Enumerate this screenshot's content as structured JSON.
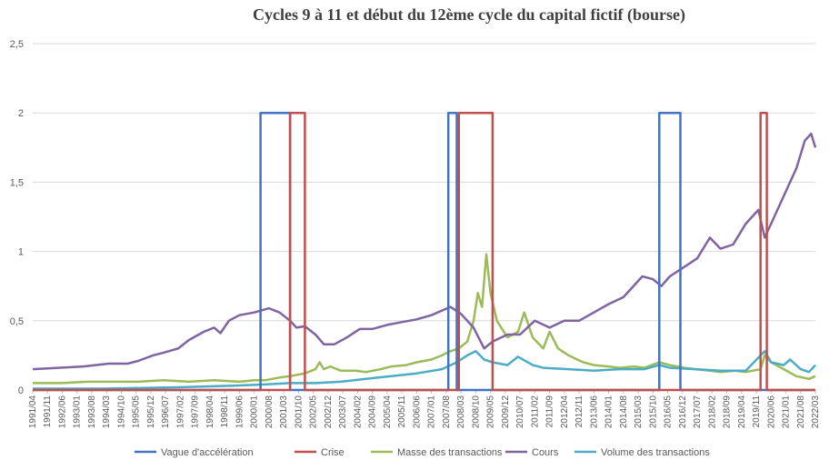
{
  "chart_data": {
    "type": "line",
    "title": "Cycles 9 à 11 et début du 12ème cycle du capital fictif  (bourse)",
    "xlabel": "",
    "ylabel": "",
    "ylim": [
      0,
      2.5
    ],
    "xrange": [
      "1991/04",
      "2022/03"
    ],
    "y_ticks": [
      "0",
      "0,5",
      "1",
      "1,5",
      "2",
      "2,5"
    ],
    "y_tick_values": [
      0,
      0.5,
      1,
      1.5,
      2,
      2.5
    ],
    "x_ticks": [
      "1991/04",
      "1991/11",
      "1992/06",
      "1993/01",
      "1993/08",
      "1994/03",
      "1994/10",
      "1995/05",
      "1995/12",
      "1996/07",
      "1997/02",
      "1997/09",
      "1998/04",
      "1998/11",
      "1999/06",
      "2000/01",
      "2000/08",
      "2001/03",
      "2001/10",
      "2002/05",
      "2002/12",
      "2003/07",
      "2004/02",
      "2004/09",
      "2005/04",
      "2005/11",
      "2006/06",
      "2007/01",
      "2007/08",
      "2008/03",
      "2008/10",
      "2009/05",
      "2009/12",
      "2010/07",
      "2011/02",
      "2011/09",
      "2012/04",
      "2012/11",
      "2013/06",
      "2014/01",
      "2014/08",
      "2015/03",
      "2015/10",
      "2016/05",
      "2016/12",
      "2017/07",
      "2018/02",
      "2018/09",
      "2019/04",
      "2019/11",
      "2020/06",
      "2021/01",
      "2021/08",
      "2022/03"
    ],
    "grid": "horizontal",
    "legend_position": "bottom",
    "series": [
      {
        "name": "Vague d'accélération",
        "color": "#4472C4",
        "points": [
          [
            "1991/04",
            0
          ],
          [
            "2000/04",
            0
          ],
          [
            "2000/04",
            2
          ],
          [
            "2001/06",
            2
          ],
          [
            "2001/06",
            0
          ],
          [
            "2007/09",
            0
          ],
          [
            "2007/09",
            2
          ],
          [
            "2008/01",
            2
          ],
          [
            "2008/01",
            0
          ],
          [
            "2016/01",
            0
          ],
          [
            "2016/01",
            2
          ],
          [
            "2016/11",
            2
          ],
          [
            "2016/11",
            0
          ],
          [
            "2022/03",
            0
          ]
        ]
      },
      {
        "name": "Crise",
        "color": "#C0504D",
        "points": [
          [
            "1991/04",
            0
          ],
          [
            "2001/06",
            0
          ],
          [
            "2001/06",
            2
          ],
          [
            "2002/01",
            2
          ],
          [
            "2002/01",
            0
          ],
          [
            "2008/02",
            0
          ],
          [
            "2008/02",
            2
          ],
          [
            "2009/06",
            2
          ],
          [
            "2009/06",
            0
          ],
          [
            "2020/01",
            0
          ],
          [
            "2020/01",
            2
          ],
          [
            "2020/04",
            2
          ],
          [
            "2020/04",
            0
          ],
          [
            "2022/03",
            0
          ]
        ]
      },
      {
        "name": "Masse des transactions",
        "color": "#9BBB59",
        "points": [
          [
            "1991/04",
            0.05
          ],
          [
            "1992/06",
            0.05
          ],
          [
            "1993/06",
            0.06
          ],
          [
            "1994/06",
            0.06
          ],
          [
            "1995/06",
            0.06
          ],
          [
            "1996/06",
            0.07
          ],
          [
            "1997/06",
            0.06
          ],
          [
            "1998/06",
            0.07
          ],
          [
            "1999/06",
            0.06
          ],
          [
            "2000/01",
            0.07
          ],
          [
            "2000/06",
            0.07
          ],
          [
            "2001/01",
            0.09
          ],
          [
            "2001/06",
            0.1
          ],
          [
            "2002/01",
            0.12
          ],
          [
            "2002/06",
            0.15
          ],
          [
            "2002/08",
            0.2
          ],
          [
            "2002/10",
            0.15
          ],
          [
            "2003/01",
            0.17
          ],
          [
            "2003/06",
            0.14
          ],
          [
            "2004/01",
            0.14
          ],
          [
            "2004/06",
            0.13
          ],
          [
            "2005/01",
            0.15
          ],
          [
            "2005/06",
            0.17
          ],
          [
            "2006/01",
            0.18
          ],
          [
            "2006/06",
            0.2
          ],
          [
            "2007/01",
            0.22
          ],
          [
            "2007/06",
            0.25
          ],
          [
            "2007/10",
            0.28
          ],
          [
            "2008/02",
            0.3
          ],
          [
            "2008/06",
            0.35
          ],
          [
            "2008/09",
            0.5
          ],
          [
            "2008/11",
            0.7
          ],
          [
            "2009/01",
            0.6
          ],
          [
            "2009/03",
            0.98
          ],
          [
            "2009/05",
            0.7
          ],
          [
            "2009/08",
            0.5
          ],
          [
            "2010/01",
            0.38
          ],
          [
            "2010/06",
            0.42
          ],
          [
            "2010/09",
            0.56
          ],
          [
            "2011/01",
            0.38
          ],
          [
            "2011/06",
            0.3
          ],
          [
            "2011/09",
            0.42
          ],
          [
            "2012/01",
            0.3
          ],
          [
            "2012/06",
            0.25
          ],
          [
            "2013/01",
            0.2
          ],
          [
            "2013/06",
            0.18
          ],
          [
            "2014/01",
            0.17
          ],
          [
            "2014/06",
            0.16
          ],
          [
            "2015/01",
            0.17
          ],
          [
            "2015/06",
            0.16
          ],
          [
            "2016/01",
            0.2
          ],
          [
            "2016/06",
            0.18
          ],
          [
            "2017/01",
            0.16
          ],
          [
            "2017/06",
            0.15
          ],
          [
            "2018/01",
            0.14
          ],
          [
            "2018/06",
            0.13
          ],
          [
            "2019/01",
            0.14
          ],
          [
            "2019/06",
            0.13
          ],
          [
            "2020/01",
            0.15
          ],
          [
            "2020/03",
            0.25
          ],
          [
            "2020/06",
            0.2
          ],
          [
            "2020/12",
            0.15
          ],
          [
            "2021/06",
            0.1
          ],
          [
            "2021/12",
            0.08
          ],
          [
            "2022/03",
            0.1
          ]
        ]
      },
      {
        "name": "Cours",
        "color": "#8064A2",
        "points": [
          [
            "1991/04",
            0.15
          ],
          [
            "1992/04",
            0.16
          ],
          [
            "1993/04",
            0.17
          ],
          [
            "1994/04",
            0.19
          ],
          [
            "1995/01",
            0.19
          ],
          [
            "1995/06",
            0.21
          ],
          [
            "1996/01",
            0.25
          ],
          [
            "1996/06",
            0.27
          ],
          [
            "1997/01",
            0.3
          ],
          [
            "1997/06",
            0.36
          ],
          [
            "1998/01",
            0.42
          ],
          [
            "1998/06",
            0.45
          ],
          [
            "1998/09",
            0.41
          ],
          [
            "1999/01",
            0.5
          ],
          [
            "1999/06",
            0.54
          ],
          [
            "2000/01",
            0.56
          ],
          [
            "2000/08",
            0.59
          ],
          [
            "2001/01",
            0.56
          ],
          [
            "2001/06",
            0.5
          ],
          [
            "2001/09",
            0.45
          ],
          [
            "2002/01",
            0.46
          ],
          [
            "2002/06",
            0.4
          ],
          [
            "2002/10",
            0.33
          ],
          [
            "2003/03",
            0.33
          ],
          [
            "2003/09",
            0.38
          ],
          [
            "2004/03",
            0.44
          ],
          [
            "2004/09",
            0.44
          ],
          [
            "2005/04",
            0.47
          ],
          [
            "2005/11",
            0.49
          ],
          [
            "2006/06",
            0.51
          ],
          [
            "2007/01",
            0.54
          ],
          [
            "2007/10",
            0.6
          ],
          [
            "2008/03",
            0.55
          ],
          [
            "2008/09",
            0.45
          ],
          [
            "2009/02",
            0.3
          ],
          [
            "2009/06",
            0.35
          ],
          [
            "2010/01",
            0.4
          ],
          [
            "2010/07",
            0.4
          ],
          [
            "2011/02",
            0.5
          ],
          [
            "2011/09",
            0.45
          ],
          [
            "2012/04",
            0.5
          ],
          [
            "2012/11",
            0.5
          ],
          [
            "2013/06",
            0.56
          ],
          [
            "2014/01",
            0.62
          ],
          [
            "2014/08",
            0.67
          ],
          [
            "2015/05",
            0.82
          ],
          [
            "2015/10",
            0.8
          ],
          [
            "2016/02",
            0.75
          ],
          [
            "2016/06",
            0.82
          ],
          [
            "2016/12",
            0.88
          ],
          [
            "2017/07",
            0.95
          ],
          [
            "2018/01",
            1.1
          ],
          [
            "2018/06",
            1.02
          ],
          [
            "2018/12",
            1.05
          ],
          [
            "2019/06",
            1.2
          ],
          [
            "2019/12",
            1.3
          ],
          [
            "2020/03",
            1.1
          ],
          [
            "2020/06",
            1.2
          ],
          [
            "2020/12",
            1.4
          ],
          [
            "2021/06",
            1.6
          ],
          [
            "2021/10",
            1.8
          ],
          [
            "2022/01",
            1.85
          ],
          [
            "2022/03",
            1.75
          ]
        ]
      },
      {
        "name": "Volume des transactions",
        "color": "#4BACC6",
        "points": [
          [
            "1991/04",
            0.01
          ],
          [
            "1994/01",
            0.01
          ],
          [
            "1997/01",
            0.02
          ],
          [
            "1999/01",
            0.03
          ],
          [
            "2000/06",
            0.04
          ],
          [
            "2001/06",
            0.05
          ],
          [
            "2002/06",
            0.05
          ],
          [
            "2003/06",
            0.06
          ],
          [
            "2004/06",
            0.08
          ],
          [
            "2005/06",
            0.1
          ],
          [
            "2006/06",
            0.12
          ],
          [
            "2007/06",
            0.15
          ],
          [
            "2008/01",
            0.2
          ],
          [
            "2008/06",
            0.25
          ],
          [
            "2008/10",
            0.28
          ],
          [
            "2009/02",
            0.22
          ],
          [
            "2009/06",
            0.2
          ],
          [
            "2010/01",
            0.18
          ],
          [
            "2010/06",
            0.24
          ],
          [
            "2011/01",
            0.18
          ],
          [
            "2011/06",
            0.16
          ],
          [
            "2012/06",
            0.15
          ],
          [
            "2013/06",
            0.14
          ],
          [
            "2014/06",
            0.15
          ],
          [
            "2015/06",
            0.15
          ],
          [
            "2016/01",
            0.18
          ],
          [
            "2016/06",
            0.16
          ],
          [
            "2017/06",
            0.15
          ],
          [
            "2018/06",
            0.14
          ],
          [
            "2019/06",
            0.14
          ],
          [
            "2020/03",
            0.28
          ],
          [
            "2020/06",
            0.2
          ],
          [
            "2020/12",
            0.18
          ],
          [
            "2021/03",
            0.22
          ],
          [
            "2021/08",
            0.15
          ],
          [
            "2021/12",
            0.13
          ],
          [
            "2022/03",
            0.18
          ]
        ]
      }
    ]
  }
}
